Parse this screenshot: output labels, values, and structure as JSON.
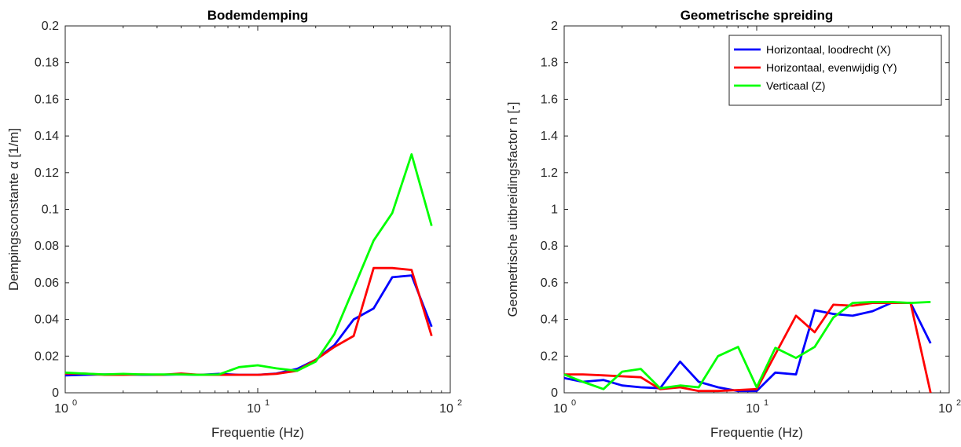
{
  "chart_data": [
    {
      "type": "line",
      "title": "Bodemdemping",
      "xlabel": "Frequentie (Hz)",
      "ylabel": "Dempingsconstante α [1/m]",
      "xscale": "log",
      "xlim": [
        1,
        100
      ],
      "ylim": [
        0,
        0.2
      ],
      "yticks": [
        "0",
        "0.02",
        "0.04",
        "0.06",
        "0.08",
        "0.1",
        "0.12",
        "0.14",
        "0.16",
        "0.18",
        "0.2"
      ],
      "xticks": [
        {
          "base": "10",
          "exp": "0"
        },
        {
          "base": "10",
          "exp": "1"
        },
        {
          "base": "10",
          "exp": "2"
        }
      ],
      "legend": null,
      "x": [
        1,
        1.25,
        1.6,
        2,
        2.5,
        3.15,
        4,
        5,
        6.3,
        8,
        10,
        12.5,
        16,
        20,
        25,
        31.5,
        40,
        50,
        63,
        80
      ],
      "series": [
        {
          "color": "#0000ff",
          "values": [
            0.0095,
            0.0098,
            0.01,
            0.01,
            0.0098,
            0.0098,
            0.01,
            0.0098,
            0.0103,
            0.0098,
            0.0098,
            0.0105,
            0.013,
            0.018,
            0.026,
            0.04,
            0.046,
            0.063,
            0.064,
            0.036
          ]
        },
        {
          "color": "#ff0000",
          "values": [
            0.0105,
            0.0105,
            0.0098,
            0.0098,
            0.01,
            0.0098,
            0.0105,
            0.0098,
            0.0098,
            0.0098,
            0.0098,
            0.0103,
            0.012,
            0.018,
            0.025,
            0.031,
            0.068,
            0.068,
            0.067,
            0.031
          ]
        },
        {
          "color": "#00ff00",
          "values": [
            0.011,
            0.0105,
            0.01,
            0.0103,
            0.01,
            0.01,
            0.01,
            0.0098,
            0.01,
            0.014,
            0.015,
            0.0133,
            0.012,
            0.017,
            0.032,
            0.057,
            0.083,
            0.098,
            0.13,
            0.091
          ]
        }
      ]
    },
    {
      "type": "line",
      "title": "Geometrische spreiding",
      "xlabel": "Frequentie (Hz)",
      "ylabel": "Geometrische uitbreidingsfactor n [-]",
      "xscale": "log",
      "xlim": [
        1,
        100
      ],
      "ylim": [
        0,
        2
      ],
      "yticks": [
        "0",
        "0.2",
        "0.4",
        "0.6",
        "0.8",
        "1",
        "1.2",
        "1.4",
        "1.6",
        "1.8",
        "2"
      ],
      "xticks": [
        {
          "base": "10",
          "exp": "0"
        },
        {
          "base": "10",
          "exp": "1"
        },
        {
          "base": "10",
          "exp": "2"
        }
      ],
      "legend": "top-right",
      "x": [
        1,
        1.25,
        1.6,
        2,
        2.5,
        3.15,
        4,
        5,
        6.3,
        8,
        10,
        12.5,
        16,
        20,
        25,
        31.5,
        40,
        50,
        63,
        80
      ],
      "series": [
        {
          "name": "Horizontaal, loodrecht (X)",
          "color": "#0000ff",
          "values": [
            0.08,
            0.06,
            0.07,
            0.04,
            0.03,
            0.025,
            0.17,
            0.06,
            0.03,
            0.01,
            0.01,
            0.11,
            0.1,
            0.45,
            0.43,
            0.42,
            0.445,
            0.49,
            0.49,
            0.27
          ]
        },
        {
          "name": "Horizontaal, evenwijdig (Y)",
          "color": "#ff0000",
          "values": [
            0.1,
            0.1,
            0.095,
            0.09,
            0.085,
            0.02,
            0.03,
            0.01,
            0.01,
            0.015,
            0.02,
            0.21,
            0.42,
            0.33,
            0.48,
            0.475,
            0.49,
            0.49,
            0.49,
            0.0
          ]
        },
        {
          "name": "Verticaal (Z)",
          "color": "#00ff00",
          "values": [
            0.1,
            0.06,
            0.02,
            0.115,
            0.13,
            0.025,
            0.04,
            0.03,
            0.2,
            0.25,
            0.03,
            0.245,
            0.19,
            0.25,
            0.41,
            0.49,
            0.495,
            0.495,
            0.49,
            0.495
          ]
        }
      ]
    }
  ]
}
